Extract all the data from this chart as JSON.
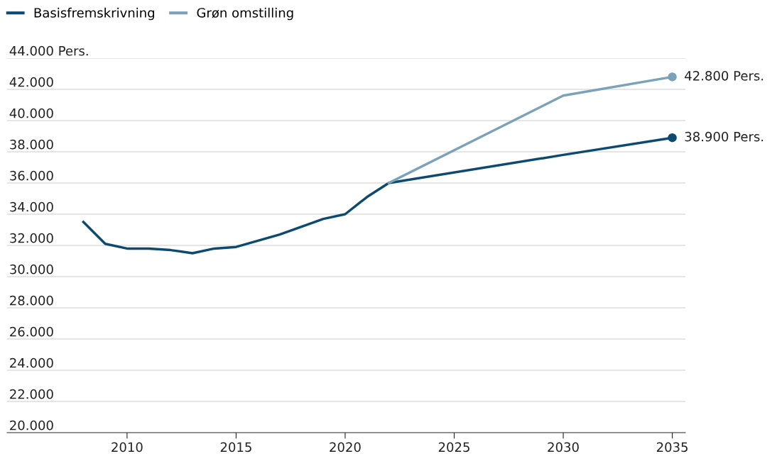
{
  "chart_data": {
    "type": "line",
    "x": [
      2008,
      2009,
      2010,
      2011,
      2012,
      2013,
      2014,
      2015,
      2016,
      2017,
      2018,
      2019,
      2020,
      2021,
      2022,
      2030,
      2035
    ],
    "series": [
      {
        "name": "Basisfremskrivning",
        "color": "#0d4a70",
        "values": [
          33500,
          32100,
          31800,
          31800,
          31700,
          31500,
          31800,
          31900,
          32300,
          32700,
          33200,
          33700,
          34000,
          35100,
          36000,
          37800,
          38900
        ]
      },
      {
        "name": "Grøn omstilling",
        "color": "#7ba2b8",
        "x": [
          2022,
          2030,
          2035
        ],
        "values": [
          36000,
          41600,
          42800
        ]
      }
    ],
    "xlim": [
      2004.5,
      2035.6
    ],
    "xticks": [
      2010,
      2015,
      2020,
      2025,
      2030,
      2035
    ],
    "ylim": [
      20000,
      44000
    ],
    "yticks": [
      {
        "value": 20000,
        "label": "20.000"
      },
      {
        "value": 22000,
        "label": "22.000"
      },
      {
        "value": 24000,
        "label": "24.000"
      },
      {
        "value": 26000,
        "label": "26.000"
      },
      {
        "value": 28000,
        "label": "28.000"
      },
      {
        "value": 30000,
        "label": "30.000"
      },
      {
        "value": 32000,
        "label": "32.000"
      },
      {
        "value": 34000,
        "label": "34.000"
      },
      {
        "value": 36000,
        "label": "36.000"
      },
      {
        "value": 38000,
        "label": "38.000"
      },
      {
        "value": 40000,
        "label": "40.000"
      },
      {
        "value": 42000,
        "label": "42.000"
      },
      {
        "value": 44000,
        "label": "44.000 Pers."
      }
    ],
    "annotations": [
      {
        "text": "42.800 Pers.",
        "x": 2035,
        "y": 42800
      },
      {
        "text": "38.900 Pers.",
        "x": 2035,
        "y": 38900
      }
    ],
    "grid": "y",
    "legend": "top left",
    "line_style": "solid"
  }
}
